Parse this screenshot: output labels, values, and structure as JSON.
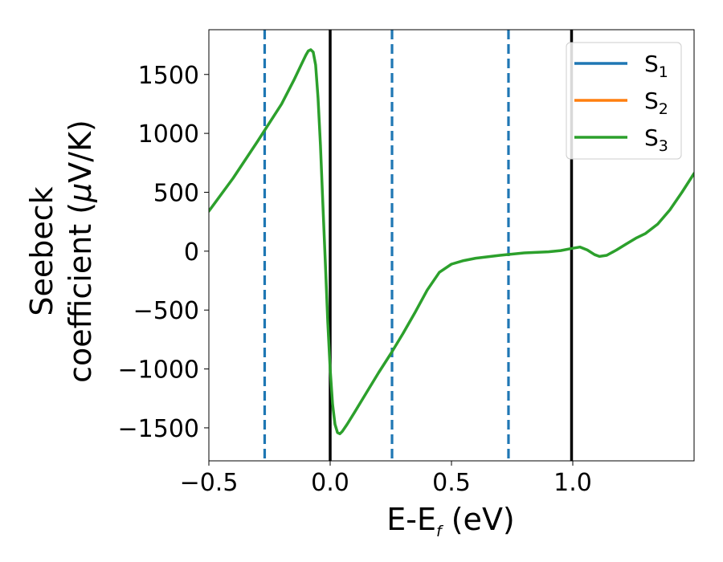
{
  "chart_data": {
    "type": "line",
    "xlabel": "E-E",
    "xlabel_sub": "f",
    "xlabel_suffix": " (eV)",
    "ylabel_line1": "Seebeck",
    "ylabel_line2": "coefficient  (",
    "ylabel_mu": "μ",
    "ylabel_unit": "V/K)",
    "xlim": [
      -0.5,
      1.5
    ],
    "ylim": [
      -1780,
      1880
    ],
    "x_ticks": [
      -0.5,
      0.0,
      0.5,
      1.0
    ],
    "x_tick_labels": [
      "−0.5",
      "0.0",
      "0.5",
      "1.0"
    ],
    "y_ticks": [
      1500,
      1000,
      500,
      0,
      -500,
      -1000,
      -1500
    ],
    "y_tick_labels": [
      "1500",
      "1000",
      "500",
      "0",
      "−500",
      "−1000",
      "−1500"
    ],
    "grid": false,
    "legend_position": "top-right",
    "vertical_lines": [
      {
        "x": -0.27,
        "style": "dashed",
        "color": "#1f77b4"
      },
      {
        "x": 0.0,
        "style": "solid",
        "color": "#000000"
      },
      {
        "x": 0.255,
        "style": "dashed",
        "color": "#1f77b4"
      },
      {
        "x": 0.735,
        "style": "dashed",
        "color": "#1f77b4"
      },
      {
        "x": 0.995,
        "style": "solid",
        "color": "#000000"
      }
    ],
    "series": [
      {
        "name": "S",
        "sub": "1",
        "color": "#1f77b4",
        "x": [],
        "y": []
      },
      {
        "name": "S",
        "sub": "2",
        "color": "#ff7f0e",
        "x": [],
        "y": []
      },
      {
        "name": "S",
        "sub": "3",
        "color": "#2ca02c",
        "x": [
          -0.5,
          -0.4,
          -0.3,
          -0.2,
          -0.15,
          -0.12,
          -0.1,
          -0.09,
          -0.08,
          -0.07,
          -0.06,
          -0.05,
          -0.04,
          -0.03,
          -0.02,
          -0.01,
          0.0,
          0.01,
          0.02,
          0.03,
          0.04,
          0.05,
          0.07,
          0.1,
          0.15,
          0.2,
          0.25,
          0.3,
          0.35,
          0.4,
          0.45,
          0.5,
          0.55,
          0.6,
          0.7,
          0.8,
          0.9,
          0.95,
          1.0,
          1.03,
          1.06,
          1.09,
          1.11,
          1.14,
          1.18,
          1.22,
          1.26,
          1.3,
          1.35,
          1.4,
          1.45,
          1.5
        ],
        "y": [
          340,
          620,
          930,
          1250,
          1450,
          1580,
          1665,
          1700,
          1710,
          1690,
          1580,
          1300,
          900,
          400,
          -100,
          -600,
          -1000,
          -1300,
          -1470,
          -1540,
          -1550,
          -1530,
          -1470,
          -1370,
          -1200,
          -1030,
          -870,
          -700,
          -520,
          -330,
          -180,
          -110,
          -80,
          -60,
          -35,
          -15,
          -5,
          5,
          25,
          35,
          10,
          -30,
          -45,
          -35,
          10,
          60,
          110,
          150,
          230,
          350,
          500,
          660
        ]
      }
    ]
  }
}
